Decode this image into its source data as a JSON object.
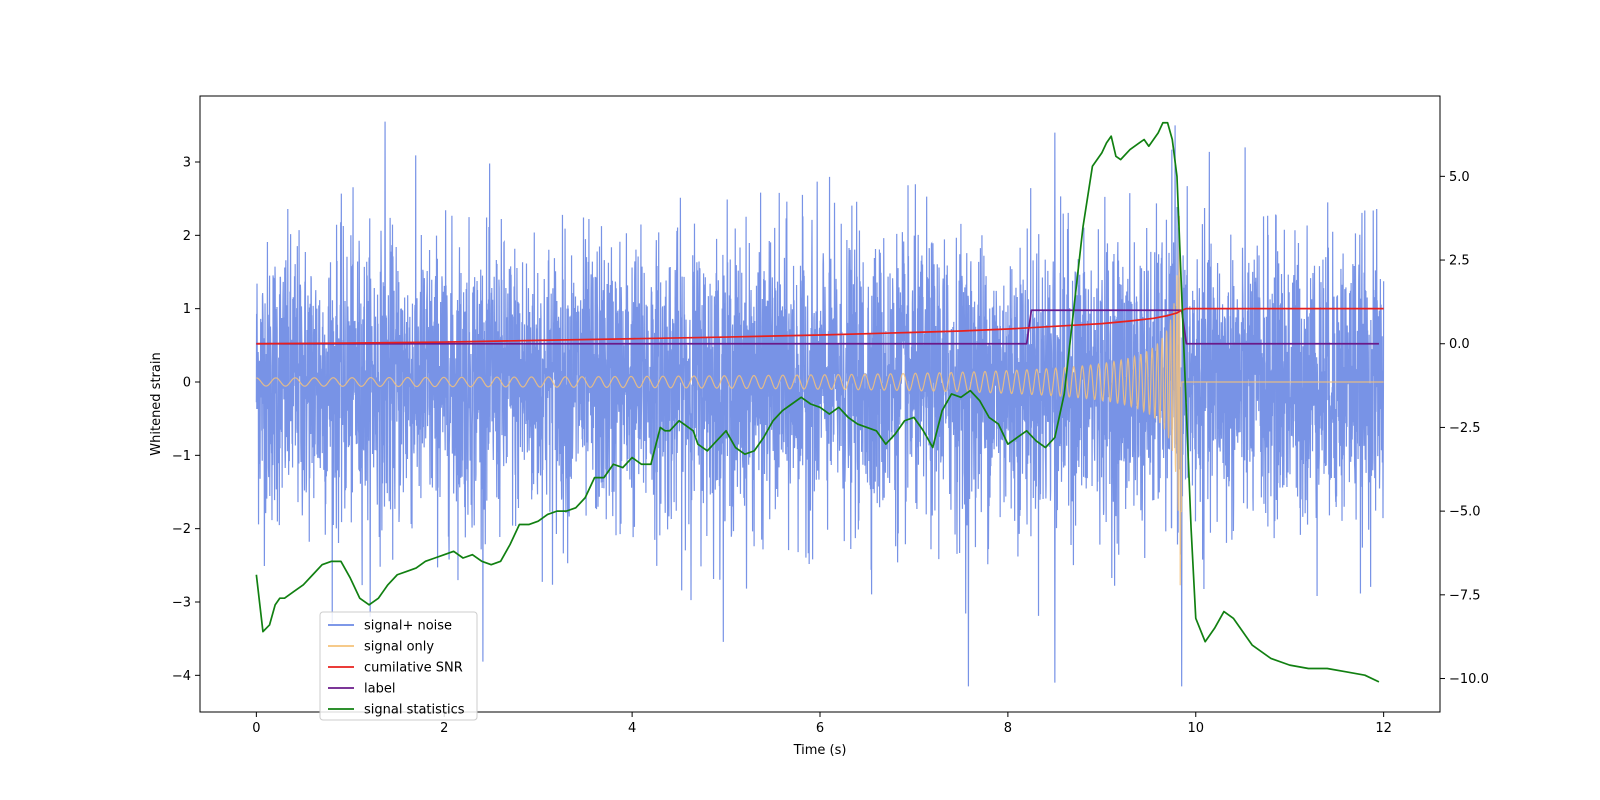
{
  "chart_data": {
    "type": "line",
    "title": "",
    "xlabel": "Time (s)",
    "ylabel": "Whitened strain",
    "y2label": "",
    "xlim": [
      -0.6,
      12.6
    ],
    "ylim": [
      -4.5,
      3.9
    ],
    "y2lim": [
      -11.0,
      7.4
    ],
    "xticks": [
      0,
      2,
      4,
      6,
      8,
      10,
      12
    ],
    "yticks": [
      -4,
      -3,
      -2,
      -1,
      0,
      1,
      2,
      3
    ],
    "y2ticks": [
      -10.0,
      -7.5,
      -5.0,
      -2.5,
      0.0,
      2.5,
      5.0
    ],
    "legend_position": "lower-left",
    "series": [
      {
        "name": "signal+ noise",
        "color": "#6c8ae4",
        "axis": "left",
        "kind": "noise",
        "x_range": [
          0,
          12
        ],
        "amplitude_std": 0.95,
        "visible_extremes": [
          {
            "x": 1.37,
            "y": 3.55
          },
          {
            "x": 7.58,
            "y": -4.15
          },
          {
            "x": 8.5,
            "y": -4.1
          },
          {
            "x": 9.85,
            "y": -4.15
          },
          {
            "x": 9.78,
            "y": 3.5
          },
          {
            "x": 8.5,
            "y": 3.4
          }
        ]
      },
      {
        "name": "signal only",
        "color": "#f5c27a",
        "axis": "left",
        "kind": "chirp",
        "x_range": [
          0,
          9.85
        ],
        "merger_time": 9.85,
        "peak_amplitude": 3.0,
        "post_merger_value": 0.0
      },
      {
        "name": "cumilative SNR",
        "color": "#e8201d",
        "axis": "right",
        "x": [
          0,
          1,
          2,
          3,
          4,
          5,
          6,
          7,
          7.5,
          8,
          8.5,
          9,
          9.3,
          9.55,
          9.7,
          9.8,
          9.85,
          9.9,
          10,
          11,
          12
        ],
        "y": [
          0.0,
          0.02,
          0.05,
          0.1,
          0.15,
          0.2,
          0.26,
          0.34,
          0.38,
          0.44,
          0.52,
          0.6,
          0.68,
          0.76,
          0.84,
          0.92,
          1.0,
          1.05,
          1.05,
          1.05,
          1.05
        ]
      },
      {
        "name": "label",
        "color": "#6a1a8a",
        "axis": "right",
        "x": [
          0,
          8.2,
          8.25,
          9.85,
          9.9,
          11.95
        ],
        "y": [
          0,
          0,
          1.0,
          1.0,
          0,
          0
        ]
      },
      {
        "name": "signal statistics",
        "color": "#118011",
        "axis": "right",
        "x": [
          0.0,
          0.07,
          0.14,
          0.2,
          0.25,
          0.3,
          0.4,
          0.5,
          0.6,
          0.7,
          0.8,
          0.9,
          1.0,
          1.1,
          1.2,
          1.3,
          1.4,
          1.5,
          1.6,
          1.7,
          1.8,
          1.9,
          2.0,
          2.1,
          2.2,
          2.3,
          2.4,
          2.5,
          2.6,
          2.7,
          2.8,
          2.9,
          3.0,
          3.1,
          3.2,
          3.3,
          3.4,
          3.5,
          3.6,
          3.7,
          3.8,
          3.9,
          4.0,
          4.1,
          4.2,
          4.3,
          4.35,
          4.4,
          4.5,
          4.6,
          4.65,
          4.7,
          4.8,
          4.9,
          5.0,
          5.1,
          5.2,
          5.3,
          5.4,
          5.5,
          5.6,
          5.7,
          5.8,
          5.9,
          6.0,
          6.1,
          6.2,
          6.3,
          6.4,
          6.5,
          6.6,
          6.7,
          6.8,
          6.9,
          7.0,
          7.1,
          7.2,
          7.3,
          7.4,
          7.5,
          7.6,
          7.7,
          7.8,
          7.9,
          8.0,
          8.1,
          8.2,
          8.3,
          8.4,
          8.5,
          8.6,
          8.7,
          8.8,
          8.9,
          9.0,
          9.05,
          9.1,
          9.15,
          9.2,
          9.3,
          9.4,
          9.45,
          9.5,
          9.6,
          9.65,
          9.7,
          9.75,
          9.8,
          9.85,
          9.9,
          9.95,
          10.0,
          10.1,
          10.2,
          10.3,
          10.4,
          10.5,
          10.6,
          10.8,
          11.0,
          11.2,
          11.4,
          11.6,
          11.8,
          11.95
        ],
        "y": [
          -6.9,
          -8.6,
          -8.4,
          -7.8,
          -7.6,
          -7.6,
          -7.4,
          -7.2,
          -6.9,
          -6.6,
          -6.5,
          -6.5,
          -7.0,
          -7.6,
          -7.8,
          -7.6,
          -7.2,
          -6.9,
          -6.8,
          -6.7,
          -6.5,
          -6.4,
          -6.3,
          -6.2,
          -6.4,
          -6.3,
          -6.5,
          -6.6,
          -6.5,
          -6.0,
          -5.4,
          -5.4,
          -5.3,
          -5.1,
          -5.0,
          -5.0,
          -4.9,
          -4.6,
          -4.0,
          -4.0,
          -3.6,
          -3.7,
          -3.4,
          -3.6,
          -3.6,
          -2.5,
          -2.6,
          -2.6,
          -2.3,
          -2.5,
          -2.6,
          -3.0,
          -3.2,
          -2.9,
          -2.6,
          -3.1,
          -3.3,
          -3.2,
          -2.8,
          -2.3,
          -2.0,
          -1.8,
          -1.6,
          -1.8,
          -1.9,
          -2.1,
          -1.9,
          -2.2,
          -2.4,
          -2.5,
          -2.6,
          -3.0,
          -2.7,
          -2.3,
          -2.2,
          -2.6,
          -3.1,
          -2.0,
          -1.5,
          -1.6,
          -1.4,
          -1.7,
          -2.2,
          -2.4,
          -3.0,
          -2.8,
          -2.6,
          -2.9,
          -3.1,
          -2.8,
          -1.5,
          1.0,
          3.5,
          5.3,
          5.7,
          6.0,
          6.2,
          5.6,
          5.5,
          5.8,
          6.0,
          6.1,
          5.9,
          6.3,
          6.6,
          6.6,
          6.1,
          5.0,
          1.5,
          -2.0,
          -5.5,
          -8.2,
          -8.9,
          -8.5,
          -8.0,
          -8.2,
          -8.6,
          -9.0,
          -9.4,
          -9.6,
          -9.7,
          -9.7,
          -9.8,
          -9.9,
          -10.1
        ]
      }
    ]
  }
}
